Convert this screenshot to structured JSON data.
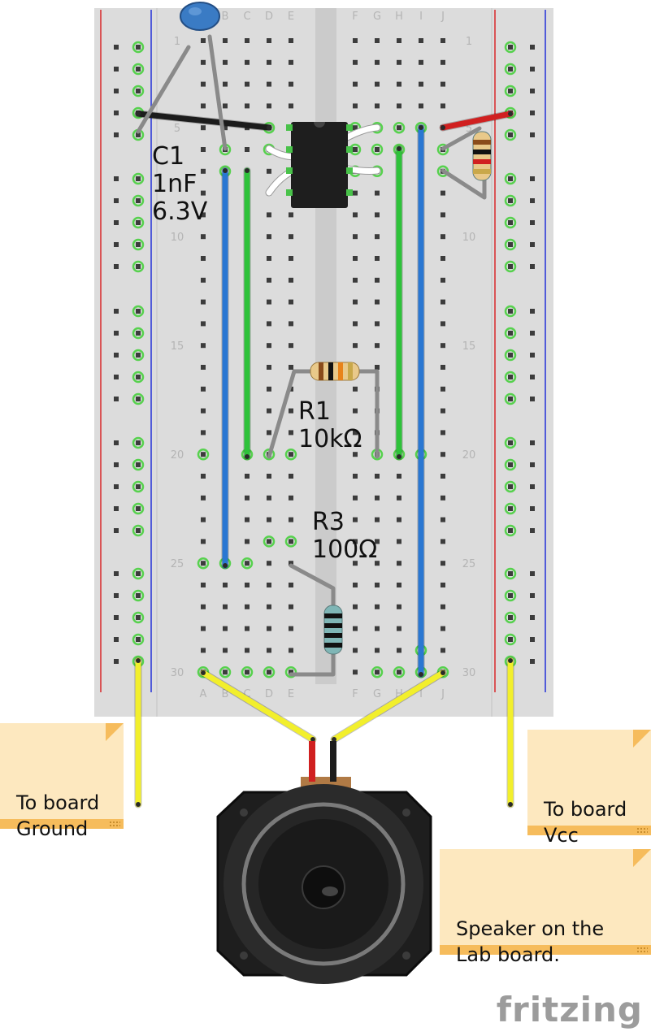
{
  "breadboard": {
    "columns_left": [
      "A",
      "B",
      "C",
      "D",
      "E"
    ],
    "columns_right": [
      "F",
      "G",
      "H",
      "I",
      "J"
    ],
    "row_markers": [
      "1",
      "5",
      "10",
      "15",
      "20",
      "25",
      "30"
    ]
  },
  "components": {
    "c1": {
      "label": "C1\n1nF\n6.3V"
    },
    "r1": {
      "label": "R1\n10kΩ"
    },
    "r3": {
      "label": "R3\n100Ω"
    }
  },
  "notes": {
    "ground": "To board\nGround",
    "vcc": "To board\nVcc",
    "speaker": "Speaker on the\nLab board."
  },
  "colors": {
    "board": "#dcdcdc",
    "hole": "#3c3c3c",
    "hole_connected": "#57d14e",
    "rail_red": "#d8262a",
    "rail_blue": "#2330d8",
    "wire_blue": "#2a77d2",
    "wire_green": "#2ec23a",
    "wire_yellow": "#f2ef2c",
    "wire_black": "#1c1c1c",
    "wire_red": "#d02020",
    "lead_gray": "#8a8a8a",
    "note_bg": "#fde8bf",
    "note_border": "#f6bc5c"
  },
  "brand": "fritzing"
}
